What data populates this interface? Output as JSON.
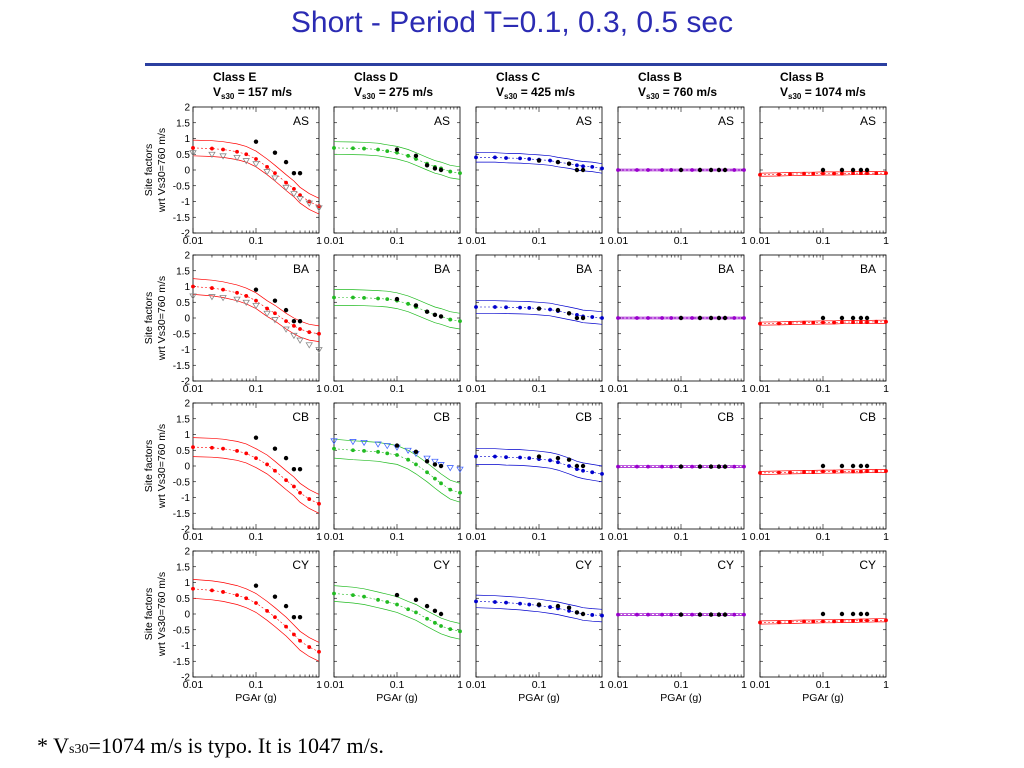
{
  "title": "Short - Period  T=0.1, 0.3, 0.5 sec",
  "footnote": {
    "pre": "* V",
    "sub": "s30",
    "post": "=1074 m/s is typo. It is 1047 m/s."
  },
  "y_axis_label_1": "Site factors",
  "y_axis_label_2": "wrt Vs30=760 m/s",
  "x_axis_label": "PGAr (g)",
  "colors": {
    "title": "#2b2bb3",
    "rule": "#2b3fa0",
    "classE": "#ff0000",
    "classD": "#22bb22",
    "classC": "#0000cc",
    "classB760": "#9900cc",
    "classB1074": "#ff0000",
    "observed": "#000000",
    "alt_series": "#888888"
  },
  "chart_data": {
    "type": "scatter",
    "x_scale": "log",
    "xlim": [
      0.01,
      1
    ],
    "ylim": [
      -2,
      2
    ],
    "x_ticks": [
      "0.01",
      "0.1",
      "1"
    ],
    "y_ticks": [
      "2",
      "1.5",
      "1",
      "0.5",
      "0",
      "-0.5",
      "-1",
      "-1.5",
      "-2"
    ],
    "x_values": [
      0.01,
      0.02,
      0.03,
      0.05,
      0.07,
      0.1,
      0.15,
      0.2,
      0.3,
      0.4,
      0.5,
      0.7,
      1.0
    ],
    "columns": [
      {
        "class": "Class E",
        "vs30": "157 m/s",
        "color_key": "classE"
      },
      {
        "class": "Class D",
        "vs30": "275 m/s",
        "color_key": "classD"
      },
      {
        "class": "Class C",
        "vs30": "425 m/s",
        "color_key": "classC"
      },
      {
        "class": "Class B",
        "vs30": "760 m/s",
        "color_key": "classB760"
      },
      {
        "class": "Class B",
        "vs30": "1074 m/s",
        "color_key": "classB1074"
      }
    ],
    "rows": [
      "AS",
      "BA",
      "CB",
      "CY"
    ],
    "observed_x": [
      0.1,
      0.2,
      0.3,
      0.4,
      0.5
    ],
    "panels": [
      [
        {
          "model": [
            0.7,
            0.68,
            0.65,
            0.58,
            0.5,
            0.35,
            0.1,
            -0.1,
            -0.4,
            -0.6,
            -0.8,
            -1.0,
            -1.15
          ],
          "spread": 0.25,
          "observed": [
            0.9,
            0.55,
            0.25,
            -0.1,
            -0.1
          ],
          "alt": [
            0.55,
            0.5,
            0.45,
            0.4,
            0.3,
            0.2,
            -0.05,
            -0.25,
            -0.55,
            -0.75,
            -0.9,
            -1.05,
            -1.2
          ]
        },
        {
          "model": [
            0.7,
            0.69,
            0.68,
            0.65,
            0.6,
            0.55,
            0.45,
            0.35,
            0.2,
            0.1,
            0.05,
            -0.05,
            -0.1
          ],
          "spread": 0.2,
          "observed": [
            0.65,
            0.45,
            0.15,
            0.05,
            0.0
          ],
          "alt": null
        },
        {
          "model": [
            0.4,
            0.4,
            0.38,
            0.37,
            0.35,
            0.33,
            0.3,
            0.25,
            0.2,
            0.15,
            0.12,
            0.1,
            0.05
          ],
          "spread": 0.15,
          "observed": [
            0.3,
            0.25,
            0.2,
            0.0,
            0.0
          ],
          "alt": null
        },
        {
          "model": [
            0.0,
            0.0,
            0.0,
            0.0,
            0.0,
            0.0,
            0.0,
            0.0,
            0.0,
            0.0,
            0.0,
            0.0,
            0.0
          ],
          "spread": 0.03,
          "observed": [
            0.0,
            0.0,
            0.0,
            0.0,
            0.0
          ],
          "alt": null
        },
        {
          "model": [
            -0.15,
            -0.14,
            -0.13,
            -0.12,
            -0.12,
            -0.11,
            -0.11,
            -0.11,
            -0.1,
            -0.1,
            -0.1,
            -0.1,
            -0.1
          ],
          "spread": 0.05,
          "observed": [
            0.0,
            0.0,
            0.0,
            0.0,
            0.0
          ],
          "alt": null
        }
      ],
      [
        {
          "model": [
            1.0,
            0.95,
            0.9,
            0.8,
            0.7,
            0.55,
            0.3,
            0.15,
            -0.1,
            -0.25,
            -0.35,
            -0.45,
            -0.5
          ],
          "spread": 0.25,
          "observed": [
            0.9,
            0.55,
            0.25,
            -0.1,
            -0.1
          ],
          "alt": [
            0.7,
            0.68,
            0.65,
            0.6,
            0.5,
            0.4,
            0.15,
            -0.05,
            -0.35,
            -0.55,
            -0.7,
            -0.85,
            -1.0
          ]
        },
        {
          "model": [
            0.65,
            0.65,
            0.64,
            0.62,
            0.6,
            0.55,
            0.45,
            0.35,
            0.2,
            0.1,
            0.05,
            -0.05,
            -0.1
          ],
          "spread": 0.25,
          "observed": [
            0.6,
            0.4,
            0.2,
            0.1,
            0.05
          ],
          "alt": null
        },
        {
          "model": [
            0.35,
            0.35,
            0.34,
            0.33,
            0.32,
            0.3,
            0.27,
            0.22,
            0.15,
            0.1,
            0.05,
            0.03,
            0.0
          ],
          "spread": 0.2,
          "observed": [
            0.3,
            0.25,
            0.15,
            0.0,
            0.0
          ],
          "alt": null
        },
        {
          "model": [
            0.0,
            0.0,
            0.0,
            0.0,
            0.0,
            0.0,
            0.0,
            0.0,
            0.0,
            0.0,
            0.0,
            0.0,
            0.0
          ],
          "spread": 0.03,
          "observed": [
            0.0,
            0.0,
            0.0,
            0.0,
            0.0
          ],
          "alt": null
        },
        {
          "model": [
            -0.18,
            -0.17,
            -0.16,
            -0.15,
            -0.15,
            -0.14,
            -0.14,
            -0.13,
            -0.13,
            -0.13,
            -0.13,
            -0.12,
            -0.12
          ],
          "spread": 0.05,
          "observed": [
            0.0,
            0.0,
            0.0,
            0.0,
            0.0
          ],
          "alt": null
        }
      ],
      [
        {
          "model": [
            0.6,
            0.58,
            0.55,
            0.48,
            0.4,
            0.25,
            0.05,
            -0.15,
            -0.45,
            -0.65,
            -0.85,
            -1.05,
            -1.2
          ],
          "spread": 0.3,
          "observed": [
            0.9,
            0.55,
            0.25,
            -0.1,
            -0.1
          ],
          "alt": null
        },
        {
          "model": [
            0.55,
            0.5,
            0.48,
            0.45,
            0.4,
            0.35,
            0.2,
            0.05,
            -0.2,
            -0.4,
            -0.55,
            -0.75,
            -0.85
          ],
          "spread": 0.3,
          "observed": [
            0.65,
            0.45,
            0.15,
            0.05,
            0.0
          ],
          "alt": [
            0.8,
            0.78,
            0.75,
            0.7,
            0.65,
            0.6,
            0.5,
            0.4,
            0.25,
            0.15,
            0.05,
            -0.05,
            -0.1
          ]
        },
        {
          "model": [
            0.3,
            0.3,
            0.28,
            0.27,
            0.25,
            0.22,
            0.18,
            0.12,
            0.0,
            -0.1,
            -0.15,
            -0.2,
            -0.25
          ],
          "spread": 0.25,
          "observed": [
            0.3,
            0.25,
            0.2,
            0.0,
            0.0
          ],
          "alt": null
        },
        {
          "model": [
            -0.02,
            -0.02,
            -0.02,
            -0.02,
            -0.02,
            -0.02,
            -0.02,
            -0.02,
            -0.02,
            -0.02,
            -0.02,
            -0.02,
            -0.02
          ],
          "spread": 0.03,
          "observed": [
            -0.02,
            -0.02,
            -0.02,
            -0.02,
            -0.02
          ],
          "alt": null
        },
        {
          "model": [
            -0.22,
            -0.21,
            -0.2,
            -0.19,
            -0.19,
            -0.18,
            -0.18,
            -0.17,
            -0.17,
            -0.17,
            -0.16,
            -0.16,
            -0.16
          ],
          "spread": 0.05,
          "observed": [
            0.0,
            0.0,
            0.0,
            0.0,
            0.0
          ],
          "alt": null
        }
      ],
      [
        {
          "model": [
            0.8,
            0.75,
            0.7,
            0.6,
            0.5,
            0.35,
            0.1,
            -0.1,
            -0.4,
            -0.65,
            -0.85,
            -1.05,
            -1.2
          ],
          "spread": 0.3,
          "observed": [
            0.9,
            0.55,
            0.25,
            -0.1,
            -0.1
          ],
          "alt": null
        },
        {
          "model": [
            0.65,
            0.6,
            0.55,
            0.45,
            0.38,
            0.3,
            0.15,
            0.05,
            -0.15,
            -0.28,
            -0.38,
            -0.48,
            -0.55
          ],
          "spread": 0.25,
          "observed": [
            0.6,
            0.45,
            0.25,
            0.1,
            0.0
          ],
          "alt": null
        },
        {
          "model": [
            0.4,
            0.38,
            0.36,
            0.33,
            0.3,
            0.27,
            0.22,
            0.18,
            0.1,
            0.05,
            0.0,
            -0.03,
            -0.05
          ],
          "spread": 0.2,
          "observed": [
            0.3,
            0.25,
            0.2,
            0.05,
            0.0
          ],
          "alt": null
        },
        {
          "model": [
            -0.02,
            -0.02,
            -0.02,
            -0.02,
            -0.02,
            -0.02,
            -0.02,
            -0.02,
            -0.02,
            -0.02,
            -0.02,
            -0.02,
            -0.02
          ],
          "spread": 0.03,
          "observed": [
            -0.02,
            -0.02,
            -0.02,
            -0.02,
            -0.02
          ],
          "alt": null
        },
        {
          "model": [
            -0.27,
            -0.26,
            -0.25,
            -0.24,
            -0.24,
            -0.23,
            -0.23,
            -0.22,
            -0.22,
            -0.21,
            -0.21,
            -0.2,
            -0.2
          ],
          "spread": 0.05,
          "observed": [
            0.0,
            0.0,
            0.0,
            0.0,
            0.0
          ],
          "alt": null
        }
      ]
    ]
  }
}
